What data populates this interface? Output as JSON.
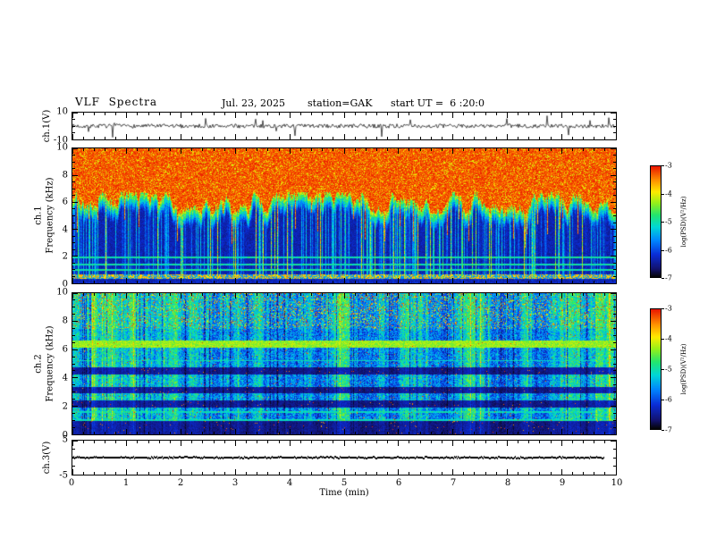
{
  "header": {
    "title": "VLF  Spectra",
    "date": "Jul. 23, 2025",
    "station": "station=GAK",
    "start_ut": "start UT =  6 :20:0"
  },
  "xaxis": {
    "label": "Time (min)",
    "range": [
      0,
      10
    ],
    "major_ticks": [
      0,
      1,
      2,
      3,
      4,
      5,
      6,
      7,
      8,
      9,
      10
    ],
    "minor_step": 0.2
  },
  "colorbar_label": "log(PSD)(V²/Hz)",
  "chart_data": [
    {
      "type": "line",
      "name": "ch1-waveform",
      "ylabel": "ch.1(V)",
      "ylim": [
        -10,
        10
      ],
      "yticks": [
        10,
        -10
      ],
      "ylabels": [
        10,
        -10
      ],
      "yminor_step": 5,
      "seed": 7,
      "noise_v": 1.5,
      "spike_rate": 0.05,
      "spike_v": 8,
      "color": "#000000",
      "description": "Broadband noisy voltage trace centered on 0 V with frequent impulsive spikes up to about ±10 V over 0–10 min"
    },
    {
      "type": "heatmap",
      "name": "ch1-spectrogram",
      "ylabel_lines": [
        "ch.1",
        "Frequency (kHz)"
      ],
      "ylim": [
        0,
        10
      ],
      "yticks": [
        0,
        2,
        4,
        6,
        8,
        10
      ],
      "ylabels": [
        0,
        2,
        4,
        6,
        8,
        10
      ],
      "yminor_step": 0.5,
      "seed": 42,
      "psd_range": [
        -7,
        -3
      ],
      "colorbar_ticks": [
        -3,
        -4,
        -5,
        -6,
        -7
      ],
      "red_band_bottom_khz": [
        5.2,
        6.8
      ],
      "fringe_depth_khz": 1.6,
      "streak_rate": 0.34,
      "strong_streak_rate": 0.09,
      "hlines_khz": [
        1.0,
        1.45,
        1.95
      ],
      "bottom_band_khz": [
        0.35,
        0.7
      ],
      "description": "Intense red broadband hiss above ~5.5–7 kHz with ragged yellow-green lower edge; dark blue/black background below ~4 kHz crossed by dense vertical cyan/green impulsive streaks; thin horizontal interference lines near 1–2 kHz and an orange speckled band near 0.5 kHz"
    },
    {
      "type": "heatmap",
      "name": "ch2-spectrogram",
      "ylabel_lines": [
        "ch.2",
        "Frequency (kHz)"
      ],
      "ylim": [
        0,
        10
      ],
      "yticks": [
        0,
        2,
        4,
        6,
        8,
        10
      ],
      "ylabels": [
        0,
        2,
        4,
        6,
        8,
        10
      ],
      "yminor_step": 0.5,
      "seed": 99,
      "psd_range": [
        -7,
        -3
      ],
      "colorbar_ticks": [
        -3,
        -4,
        -5,
        -6,
        -7
      ],
      "bright_band_khz": [
        6.2,
        6.65
      ],
      "dark_bands_khz": [
        [
          1.9,
          2.45
        ],
        [
          2.95,
          3.4
        ],
        [
          4.25,
          4.75
        ],
        [
          0.0,
          0.95
        ]
      ],
      "hlines_khz": [
        1.05,
        1.6,
        5.25
      ],
      "red_speckle_rate": 0.012,
      "description": "Mottled green/cyan background with scattered red speckles (densest above ~8 kHz); bright yellow-green band near 6.4 kHz; dark blue/black horizontal bands near 2, 3, 4.5 and below 1 kHz; vertical impulsive streaks throughout"
    },
    {
      "type": "line",
      "name": "ch3-trace",
      "ylabel": "ch.3(V)",
      "ylim": [
        -5,
        5
      ],
      "yticks": [
        5,
        -5
      ],
      "ylabels": [
        5,
        -5
      ],
      "yminor_step": 2.5,
      "seed": 3,
      "flat_value": 0,
      "end_fraction": 0.98,
      "description": "Flat dense black trace at 0 V ending near 9.8 min"
    }
  ]
}
